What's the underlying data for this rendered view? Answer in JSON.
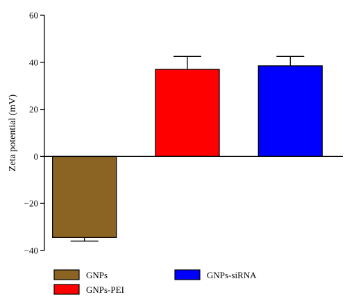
{
  "chart_data": {
    "type": "bar",
    "categories": [
      "GNPs",
      "GNPs-PEI",
      "GNPs-siRNA"
    ],
    "values": [
      -34.5,
      37,
      38.5
    ],
    "error_bars": [
      1.5,
      5.5,
      4
    ],
    "colors": [
      "#8b6423",
      "#ff0000",
      "#0000ff"
    ],
    "ylabel": "Zeta potential (mV)",
    "ylim": [
      -40,
      60
    ],
    "yticks": [
      -40,
      -20,
      0,
      20,
      40,
      60
    ],
    "ytick_labels": [
      "−40",
      "−20",
      "0",
      "20",
      "40",
      "60"
    ],
    "grid": false,
    "legend_position": "bottom"
  }
}
